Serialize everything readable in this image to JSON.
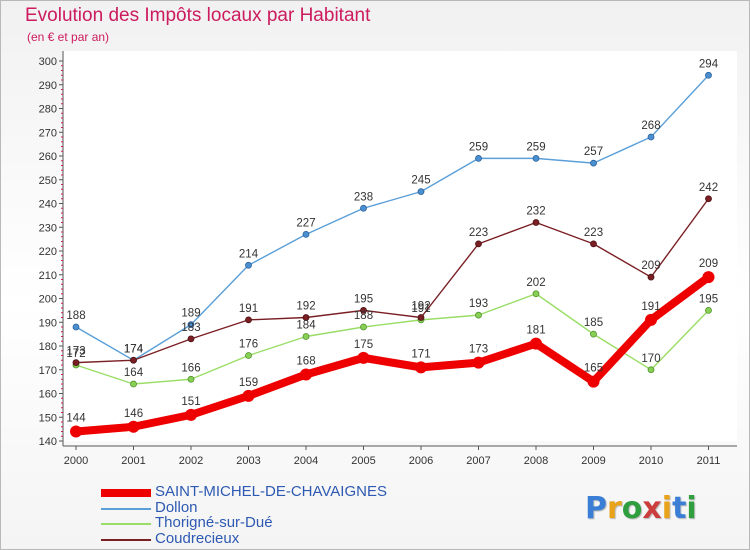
{
  "header": {
    "title": "Evolution des Impôts locaux par Habitant",
    "subtitle": "(en € et par an)"
  },
  "logo": {
    "text": "Proxiti",
    "colors": [
      "#3a7fd5",
      "#e8a31a",
      "#2f9e3e",
      "#cc3e3e",
      "#e8a31a",
      "#3a7fd5",
      "#2f9e3e"
    ]
  },
  "chart_data": {
    "type": "line",
    "title": "Evolution des Impôts locaux par Habitant",
    "subtitle": "(en € et par an)",
    "xlabel": "",
    "ylabel": "",
    "x": [
      "2000",
      "2001",
      "2002",
      "2003",
      "2004",
      "2005",
      "2006",
      "2007",
      "2008",
      "2009",
      "2010",
      "2011"
    ],
    "ylim": [
      140,
      300
    ],
    "yticks": [
      "140",
      "150",
      "160",
      "170",
      "180",
      "190",
      "200",
      "210",
      "220",
      "230",
      "240",
      "250",
      "260",
      "270",
      "280",
      "290",
      "300"
    ],
    "grid": false,
    "legend_position": "bottom-left",
    "series": [
      {
        "name": "SAINT-MICHEL-DE-CHAVAIGNES",
        "color": "#ee0000",
        "values": [
          144,
          146,
          151,
          159,
          168,
          175,
          171,
          173,
          181,
          165,
          191,
          209
        ]
      },
      {
        "name": "Dollon",
        "color": "#5a9fd8",
        "values": [
          188,
          174,
          189,
          214,
          227,
          238,
          245,
          259,
          259,
          257,
          268,
          294
        ]
      },
      {
        "name": "Thorigné-sur-Dué",
        "color": "#99dd66",
        "values": [
          172,
          164,
          166,
          176,
          184,
          188,
          191,
          193,
          202,
          185,
          170,
          195
        ]
      },
      {
        "name": "Coudrecieux",
        "color": "#7a1f24",
        "values": [
          173,
          174,
          183,
          191,
          192,
          195,
          192,
          223,
          232,
          223,
          209,
          242
        ]
      }
    ]
  }
}
